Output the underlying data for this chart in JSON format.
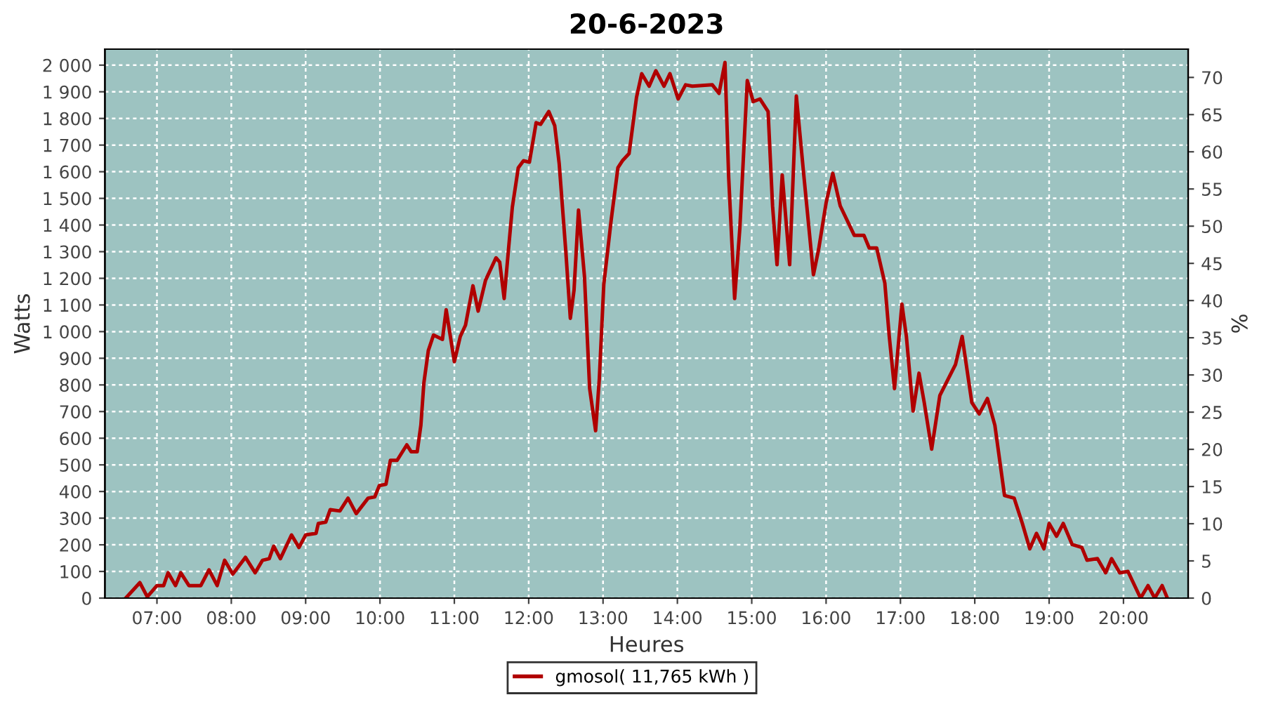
{
  "chart_data": {
    "type": "line",
    "title": "20-6-2023",
    "xlabel": "Heures",
    "ylabel": "Watts",
    "y2label": "%",
    "xlim": [
      6.3,
      20.87
    ],
    "ylim": [
      0,
      2060
    ],
    "y2lim": [
      0,
      73.8
    ],
    "xticks": [
      {
        "value": 7,
        "label": "07:00"
      },
      {
        "value": 8,
        "label": "08:00"
      },
      {
        "value": 9,
        "label": "09:00"
      },
      {
        "value": 10,
        "label": "10:00"
      },
      {
        "value": 11,
        "label": "11:00"
      },
      {
        "value": 12,
        "label": "12:00"
      },
      {
        "value": 13,
        "label": "13:00"
      },
      {
        "value": 14,
        "label": "14:00"
      },
      {
        "value": 15,
        "label": "15:00"
      },
      {
        "value": 16,
        "label": "16:00"
      },
      {
        "value": 17,
        "label": "17:00"
      },
      {
        "value": 18,
        "label": "18:00"
      },
      {
        "value": 19,
        "label": "19:00"
      },
      {
        "value": 20,
        "label": "20:00"
      }
    ],
    "yticks": [
      0,
      100,
      200,
      300,
      400,
      500,
      600,
      700,
      800,
      900,
      {
        "value": 1000,
        "label": "1 000"
      },
      {
        "value": 1100,
        "label": "1 100"
      },
      {
        "value": 1200,
        "label": "1 200"
      },
      {
        "value": 1300,
        "label": "1 300"
      },
      {
        "value": 1400,
        "label": "1 400"
      },
      {
        "value": 1500,
        "label": "1 500"
      },
      {
        "value": 1600,
        "label": "1 600"
      },
      {
        "value": 1700,
        "label": "1 700"
      },
      {
        "value": 1800,
        "label": "1 800"
      },
      {
        "value": 1900,
        "label": "1 900"
      },
      {
        "value": 2000,
        "label": "2 000"
      }
    ],
    "y2ticks": [
      0,
      5,
      10,
      15,
      20,
      25,
      30,
      35,
      40,
      45,
      50,
      55,
      60,
      65,
      70
    ],
    "grid": true,
    "legend": "bottom",
    "marker": "none",
    "line_style": "solid",
    "series": [
      {
        "name": "gmosol( 11,765 kWh )",
        "color": "#b00000",
        "x": [
          6.58,
          6.77,
          6.87,
          7.0,
          7.09,
          7.15,
          7.25,
          7.32,
          7.43,
          7.59,
          7.7,
          7.81,
          7.91,
          8.02,
          8.19,
          8.32,
          8.42,
          8.51,
          8.57,
          8.66,
          8.81,
          8.91,
          9.0,
          9.14,
          9.17,
          9.27,
          9.33,
          9.46,
          9.57,
          9.68,
          9.84,
          9.93,
          9.99,
          10.08,
          10.14,
          10.23,
          10.36,
          10.42,
          10.5,
          10.55,
          10.59,
          10.65,
          10.72,
          10.84,
          10.89,
          11.0,
          11.08,
          11.15,
          11.25,
          11.32,
          11.42,
          11.56,
          11.61,
          11.67,
          11.73,
          11.78,
          11.86,
          11.93,
          12.01,
          12.1,
          12.16,
          12.27,
          12.35,
          12.41,
          12.5,
          12.56,
          12.61,
          12.67,
          12.75,
          12.82,
          12.9,
          12.95,
          13.01,
          13.11,
          13.2,
          13.26,
          13.35,
          13.45,
          13.52,
          13.62,
          13.71,
          13.82,
          13.9,
          14.01,
          14.11,
          14.2,
          14.47,
          14.56,
          14.64,
          14.69,
          14.77,
          14.84,
          14.94,
          15.02,
          15.11,
          15.22,
          15.28,
          15.34,
          15.41,
          15.51,
          15.6,
          15.7,
          15.83,
          15.9,
          16.0,
          16.09,
          16.19,
          16.38,
          16.51,
          16.58,
          16.68,
          16.79,
          16.85,
          16.92,
          17.02,
          17.08,
          17.17,
          17.25,
          17.32,
          17.42,
          17.53,
          17.74,
          17.83,
          17.96,
          18.06,
          18.17,
          18.27,
          18.4,
          18.53,
          18.64,
          18.74,
          18.83,
          18.93,
          19.0,
          19.1,
          19.19,
          19.31,
          19.44,
          19.51,
          19.65,
          19.76,
          19.84,
          19.95,
          20.06,
          20.23,
          20.33,
          20.42,
          20.52,
          20.59
        ],
        "values": [
          0,
          58,
          5,
          47,
          47,
          95,
          47,
          95,
          47,
          47,
          106,
          47,
          142,
          90,
          153,
          95,
          142,
          148,
          195,
          148,
          237,
          190,
          237,
          243,
          280,
          285,
          332,
          327,
          375,
          317,
          375,
          380,
          422,
          427,
          517,
          517,
          575,
          549,
          549,
          649,
          807,
          929,
          987,
          971,
          1082,
          887,
          982,
          1024,
          1172,
          1077,
          1193,
          1277,
          1261,
          1124,
          1314,
          1467,
          1615,
          1641,
          1636,
          1784,
          1778,
          1826,
          1773,
          1631,
          1298,
          1050,
          1156,
          1456,
          1208,
          786,
          628,
          823,
          1177,
          1420,
          1615,
          1641,
          1668,
          1879,
          1968,
          1921,
          1979,
          1921,
          1968,
          1873,
          1926,
          1921,
          1926,
          1894,
          2010,
          1578,
          1124,
          1388,
          1942,
          1863,
          1873,
          1826,
          1472,
          1251,
          1588,
          1251,
          1884,
          1588,
          1214,
          1309,
          1483,
          1594,
          1472,
          1361,
          1361,
          1314,
          1314,
          1182,
          982,
          786,
          1103,
          982,
          702,
          844,
          734,
          559,
          760,
          876,
          982,
          734,
          691,
          749,
          649,
          385,
          375,
          280,
          185,
          243,
          185,
          280,
          232,
          280,
          201,
          190,
          142,
          148,
          95,
          148,
          95,
          100,
          0,
          47,
          0,
          47,
          0
        ]
      }
    ]
  }
}
